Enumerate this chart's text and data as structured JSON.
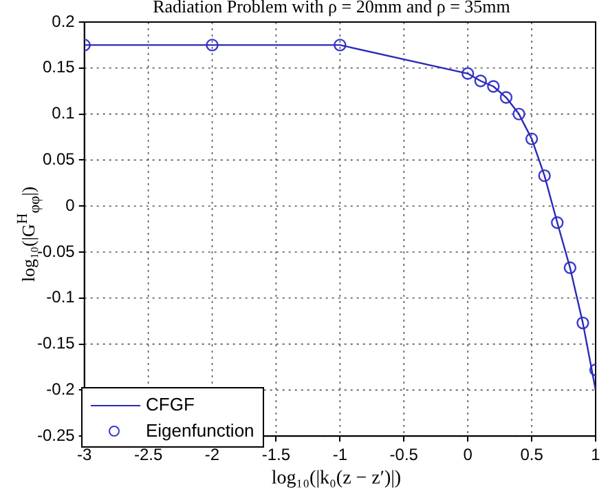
{
  "chart_data": {
    "type": "line",
    "title": "Radiation Problem with ρ = 20mm and ρ = 35mm",
    "xlabel": "log₁₀(|k₀(z − z′)|)",
    "ylabel": "log₁₀(|G$^{H}$$_{φφ}$|)",
    "xlim": [
      -3,
      1
    ],
    "xticks": [
      -3,
      -2.5,
      -2,
      -1.5,
      -1,
      -0.5,
      0,
      0.5,
      1
    ],
    "ylim": [
      -0.25,
      0.2
    ],
    "yticks": [
      -0.25,
      -0.2,
      -0.15,
      -0.1,
      -0.05,
      0,
      0.05,
      0.1,
      0.15,
      0.2
    ],
    "grid": true,
    "legend": "bottom left",
    "series": [
      {
        "name": "CFGF",
        "marker": "none",
        "color": "#2a2ab8",
        "x": [
          -3,
          -2,
          -1,
          0,
          0.1,
          0.2,
          0.3,
          0.4,
          0.5,
          0.6,
          0.7,
          0.8,
          0.9,
          1
        ],
        "values": [
          0.175,
          0.175,
          0.175,
          0.144,
          0.136,
          0.13,
          0.118,
          0.1,
          0.073,
          0.033,
          -0.018,
          -0.067,
          -0.127,
          -0.2
        ]
      },
      {
        "name": "Eigenfunction",
        "type": "scatter",
        "marker": "circle",
        "color": "#3a3ad0",
        "x": [
          -3,
          -2,
          -1,
          0,
          0.1,
          0.2,
          0.3,
          0.4,
          0.5,
          0.6,
          0.7,
          0.8,
          0.9,
          1
        ],
        "values": [
          0.175,
          0.175,
          0.175,
          0.144,
          0.136,
          0.13,
          0.118,
          0.1,
          0.073,
          0.033,
          -0.018,
          -0.067,
          -0.127,
          -0.178
        ]
      }
    ]
  }
}
